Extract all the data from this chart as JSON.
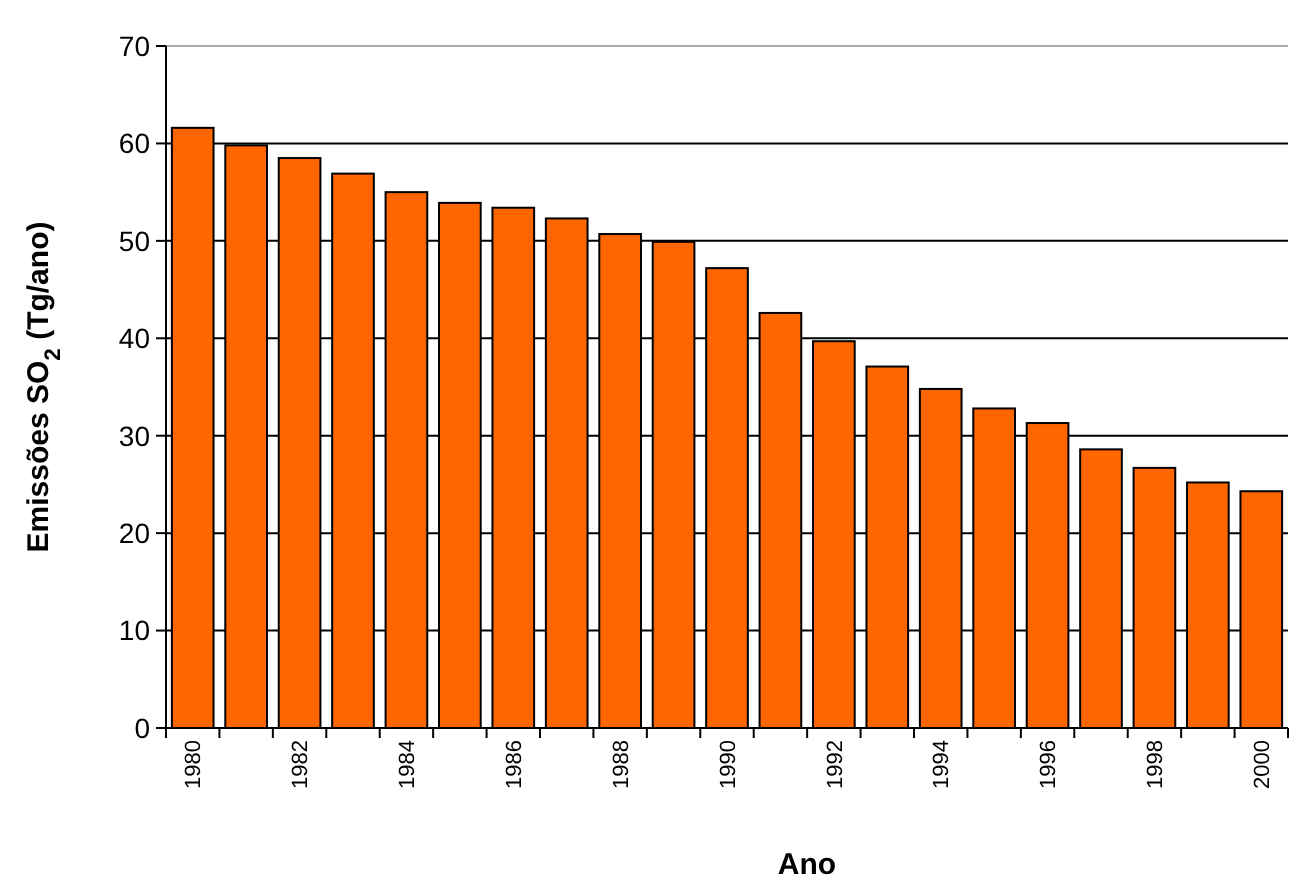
{
  "chart_data": {
    "type": "bar",
    "xlabel": "Ano",
    "ylabel": "Emissões SO$_{2}$ (Tg/ano)",
    "categories": [
      "1980",
      null,
      "1982",
      null,
      "1984",
      null,
      "1986",
      null,
      "1988",
      null,
      "1990",
      null,
      "1992",
      null,
      "1994",
      null,
      "1996",
      null,
      "1998",
      null,
      "2000"
    ],
    "values": [
      61.6,
      59.8,
      58.5,
      56.9,
      55,
      53.9,
      53.4,
      52.3,
      50.7,
      49.9,
      47.2,
      42.6,
      39.7,
      37.1,
      34.8,
      32.8,
      31.3,
      28.6,
      26.7,
      25.2,
      24.3
    ],
    "color": "#ff6600",
    "ylim": [
      0,
      70
    ],
    "yticks": [
      0,
      10,
      20,
      30,
      40,
      50,
      60,
      70
    ],
    "grid": "y"
  }
}
